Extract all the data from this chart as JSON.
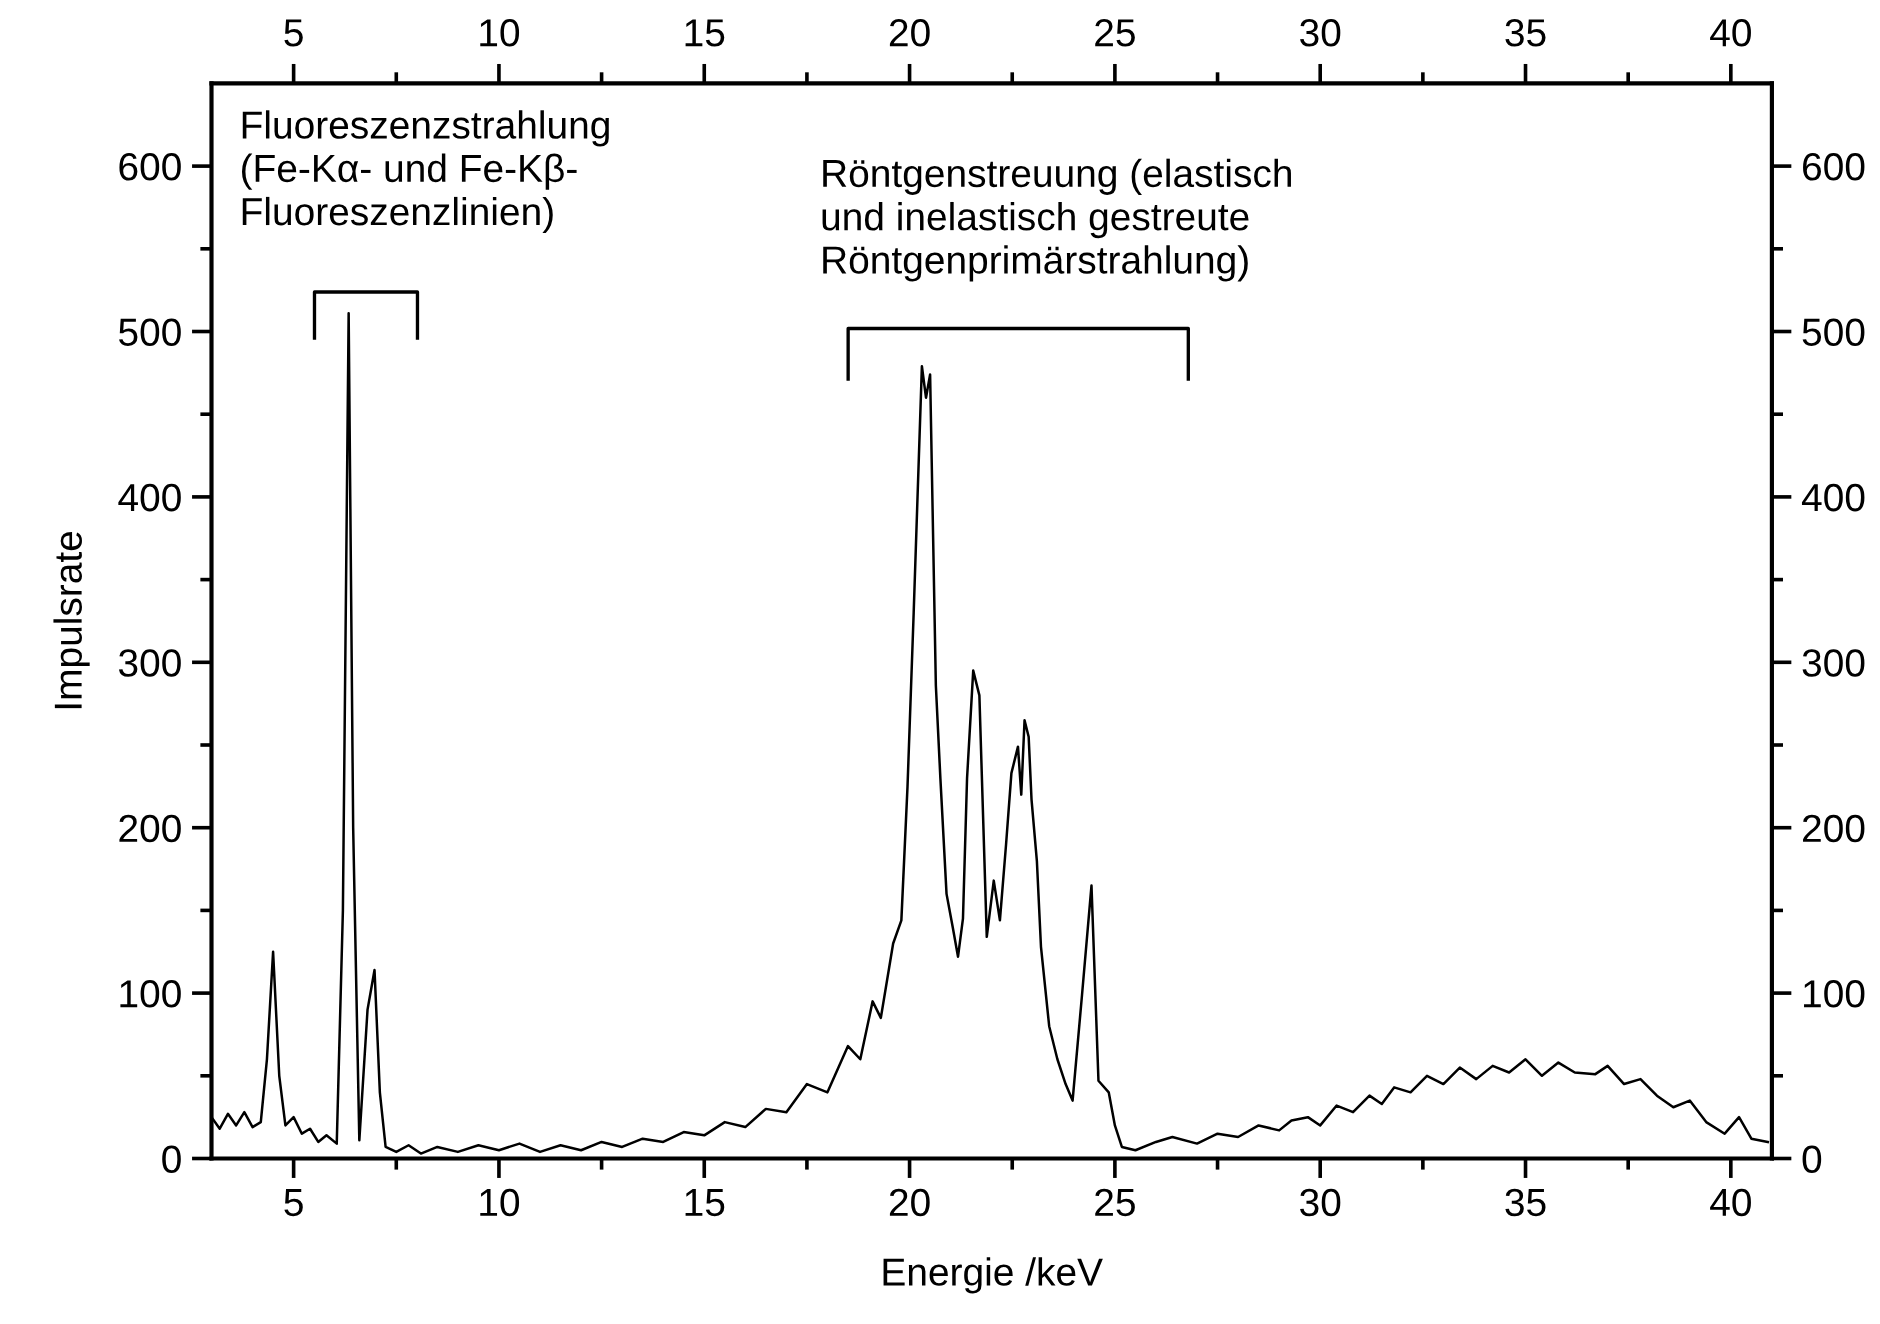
{
  "chart_data": {
    "type": "line",
    "xlabel": "Energie /keV",
    "ylabel": "Impulsrate",
    "annotations": [
      "Fluoreszenzstrahlung\n(Fe-Kα- und Fe-Kβ-\nFluoreszenzlinien)",
      "Röntgenstreuung (elastisch\nund inelastisch gestreute\nRöntgenprimärstrahlung)"
    ],
    "xlim": [
      3,
      41
    ],
    "x2lim": [
      3,
      41
    ],
    "ylim": [
      0,
      650
    ],
    "y2lim": [
      0,
      650
    ],
    "xticks": [
      5,
      {
        "value": 7.5,
        "label": null
      },
      10,
      {
        "value": 12.5,
        "label": null
      },
      15,
      {
        "value": 17.5,
        "label": null
      },
      20,
      {
        "value": 22.5,
        "label": null
      },
      25,
      {
        "value": 27.5,
        "label": null
      },
      30,
      {
        "value": 32.5,
        "label": null
      },
      35,
      {
        "value": 37.5,
        "label": null
      },
      40
    ],
    "x2ticks": [
      5,
      {
        "value": 7.5,
        "label": null
      },
      10,
      {
        "value": 12.5,
        "label": null
      },
      15,
      {
        "value": 17.5,
        "label": null
      },
      20,
      {
        "value": 22.5,
        "label": null
      },
      25,
      {
        "value": 27.5,
        "label": null
      },
      30,
      {
        "value": 32.5,
        "label": null
      },
      35,
      {
        "value": 37.5,
        "label": null
      },
      40
    ],
    "yticks": [
      0,
      {
        "value": 50,
        "label": null
      },
      100,
      {
        "value": 150,
        "label": null
      },
      200,
      {
        "value": 250,
        "label": null
      },
      300,
      {
        "value": 350,
        "label": null
      },
      400,
      {
        "value": 450,
        "label": null
      },
      500,
      {
        "value": 550,
        "label": null
      },
      600
    ],
    "y2ticks": [
      0,
      {
        "value": 50,
        "label": null
      },
      100,
      {
        "value": 150,
        "label": null
      },
      200,
      {
        "value": 250,
        "label": null
      },
      300,
      {
        "value": 350,
        "label": null
      },
      400,
      {
        "value": 450,
        "label": null
      },
      500,
      {
        "value": 550,
        "label": null
      },
      600
    ],
    "grid": false,
    "legend": false,
    "marker": "none",
    "line_style": "solid",
    "series": [
      {
        "color": "#000000",
        "x": [
          3.0,
          3.2,
          3.4,
          3.6,
          3.8,
          4.0,
          4.2,
          4.35,
          4.5,
          4.65,
          4.8,
          5.0,
          5.2,
          5.4,
          5.6,
          5.8,
          6.05,
          6.2,
          6.34,
          6.45,
          6.6,
          6.8,
          6.97,
          7.1,
          7.24,
          7.5,
          7.8,
          8.1,
          8.5,
          9.0,
          9.5,
          10,
          10.5,
          11,
          11.5,
          12,
          12.5,
          13,
          13.5,
          14,
          14.5,
          15,
          15.5,
          16,
          16.5,
          17,
          17.5,
          18,
          18.5,
          18.8,
          19.1,
          19.3,
          19.6,
          19.8,
          19.95,
          20.1,
          20.3,
          20.4,
          20.5,
          20.64,
          20.75,
          20.9,
          21.05,
          21.18,
          21.3,
          21.4,
          21.55,
          21.7,
          21.88,
          22.05,
          22.2,
          22.35,
          22.48,
          22.64,
          22.72,
          22.8,
          22.9,
          22.97,
          23.1,
          23.2,
          23.4,
          23.6,
          23.8,
          23.97,
          24.2,
          24.43,
          24.6,
          24.85,
          25.0,
          25.17,
          25.5,
          26,
          26.4,
          27,
          27.5,
          28,
          28.5,
          29,
          29.3,
          29.7,
          30,
          30.4,
          30.8,
          31.2,
          31.5,
          31.8,
          32.2,
          32.6,
          33,
          33.4,
          33.8,
          34.2,
          34.6,
          35,
          35.4,
          35.8,
          36.2,
          36.7,
          37.0,
          37.4,
          37.8,
          38.2,
          38.6,
          39.0,
          39.4,
          39.85,
          40.2,
          40.5,
          40.9
        ],
        "values": [
          25,
          18,
          27,
          20,
          28,
          19,
          22,
          60,
          125,
          50,
          20,
          25,
          15,
          18,
          10,
          14,
          9,
          150,
          511,
          200,
          11,
          90,
          114,
          40,
          7,
          4,
          8,
          3,
          7,
          4,
          8,
          5,
          9,
          4,
          8,
          5,
          10,
          7,
          12,
          10,
          16,
          14,
          22,
          19,
          30,
          28,
          45,
          40,
          68,
          60,
          95,
          85,
          130,
          144,
          225,
          330,
          479,
          460,
          474,
          286,
          230,
          160,
          140,
          122,
          145,
          230,
          295,
          280,
          134,
          168,
          144,
          190,
          233,
          249,
          220,
          265,
          255,
          217,
          180,
          128,
          80,
          60,
          45,
          35,
          99,
          165,
          47,
          40,
          20,
          7,
          5,
          10,
          13,
          9,
          15,
          13,
          20,
          17,
          23,
          25,
          20,
          32,
          28,
          38,
          33,
          43,
          40,
          50,
          45,
          55,
          48,
          56,
          52,
          60,
          50,
          58,
          52,
          51,
          56,
          45,
          48,
          38,
          31,
          35,
          22,
          15,
          25,
          12,
          10
        ]
      }
    ]
  }
}
